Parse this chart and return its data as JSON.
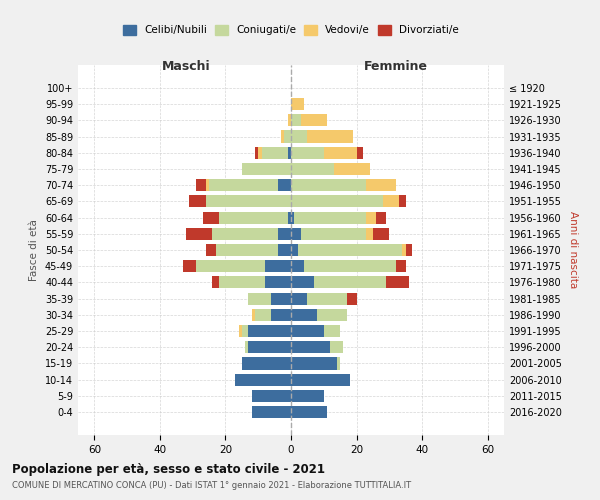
{
  "age_groups": [
    "100+",
    "95-99",
    "90-94",
    "85-89",
    "80-84",
    "75-79",
    "70-74",
    "65-69",
    "60-64",
    "55-59",
    "50-54",
    "45-49",
    "40-44",
    "35-39",
    "30-34",
    "25-29",
    "20-24",
    "15-19",
    "10-14",
    "5-9",
    "0-4"
  ],
  "birth_years": [
    "≤ 1920",
    "1921-1925",
    "1926-1930",
    "1931-1935",
    "1936-1940",
    "1941-1945",
    "1946-1950",
    "1951-1955",
    "1956-1960",
    "1961-1965",
    "1966-1970",
    "1971-1975",
    "1976-1980",
    "1981-1985",
    "1986-1990",
    "1991-1995",
    "1996-2000",
    "2001-2005",
    "2006-2010",
    "2011-2015",
    "2016-2020"
  ],
  "colors": {
    "celibe": "#3d6d9e",
    "coniugato": "#c5d89d",
    "vedovo": "#f5c96b",
    "divorziato": "#c0392b"
  },
  "males": {
    "celibe": [
      0,
      0,
      0,
      0,
      1,
      0,
      4,
      0,
      1,
      4,
      4,
      8,
      8,
      6,
      6,
      13,
      13,
      15,
      17,
      12,
      12
    ],
    "coniugato": [
      0,
      0,
      0,
      2,
      8,
      15,
      21,
      26,
      21,
      20,
      19,
      21,
      14,
      7,
      5,
      2,
      1,
      0,
      0,
      0,
      0
    ],
    "vedovo": [
      0,
      0,
      1,
      1,
      1,
      0,
      1,
      0,
      0,
      0,
      0,
      0,
      0,
      0,
      1,
      1,
      0,
      0,
      0,
      0,
      0
    ],
    "divorziato": [
      0,
      0,
      0,
      0,
      1,
      0,
      3,
      5,
      5,
      8,
      3,
      4,
      2,
      0,
      0,
      0,
      0,
      0,
      0,
      0,
      0
    ]
  },
  "females": {
    "celibe": [
      0,
      0,
      0,
      0,
      0,
      0,
      0,
      0,
      1,
      3,
      2,
      4,
      7,
      5,
      8,
      10,
      12,
      14,
      18,
      10,
      11
    ],
    "coniugato": [
      0,
      0,
      3,
      5,
      10,
      13,
      23,
      28,
      22,
      20,
      32,
      28,
      22,
      12,
      9,
      5,
      4,
      1,
      0,
      0,
      0
    ],
    "vedovo": [
      0,
      4,
      8,
      14,
      10,
      11,
      9,
      5,
      3,
      2,
      1,
      0,
      0,
      0,
      0,
      0,
      0,
      0,
      0,
      0,
      0
    ],
    "divorziato": [
      0,
      0,
      0,
      0,
      2,
      0,
      0,
      2,
      3,
      5,
      2,
      3,
      7,
      3,
      0,
      0,
      0,
      0,
      0,
      0,
      0
    ]
  },
  "xlim": 65,
  "title": "Popolazione per età, sesso e stato civile - 2021",
  "subtitle": "COMUNE DI MERCATINO CONCA (PU) - Dati ISTAT 1° gennaio 2021 - Elaborazione TUTTITALIA.IT",
  "ylabel_left": "Fasce di età",
  "ylabel_right": "Anni di nascita",
  "maschi_label": "Maschi",
  "femmine_label": "Femmine",
  "legend_labels": [
    "Celibi/Nubili",
    "Coniugati/e",
    "Vedovi/e",
    "Divorziati/e"
  ],
  "bg_color": "#f0f0f0",
  "plot_bg": "#ffffff"
}
